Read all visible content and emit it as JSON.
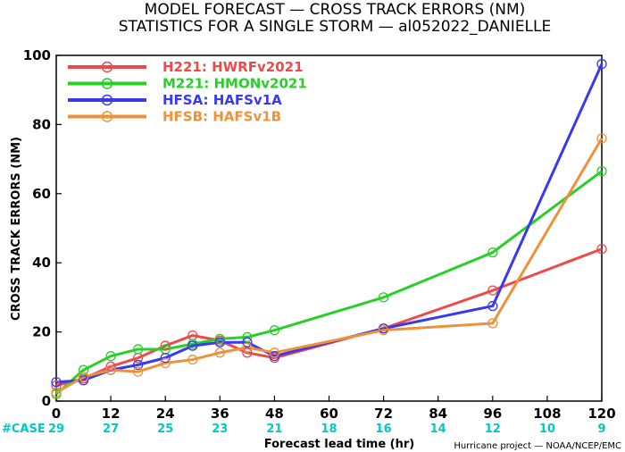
{
  "chart_data": {
    "type": "line",
    "title": "MODEL FORECAST — CROSS TRACK ERRORS (NM)",
    "subtitle": "STATISTICS FOR A SINGLE STORM — al052022_DANIELLE",
    "xlabel": "Forecast lead time (hr)",
    "ylabel": "CROSS TRACK ERRORS (NM)",
    "xlim": [
      0,
      120
    ],
    "ylim": [
      0,
      100
    ],
    "x_ticks": [
      0,
      12,
      24,
      36,
      48,
      60,
      72,
      84,
      96,
      108,
      120
    ],
    "y_ticks": [
      0,
      20,
      40,
      60,
      80,
      100
    ],
    "grid": false,
    "legend_position": "top-left",
    "case_row": {
      "label": "#CASE",
      "color": "#00c8c8",
      "counts": [
        "29",
        "27",
        "25",
        "23",
        "21",
        "18",
        "16",
        "14",
        "12",
        "10",
        "9"
      ]
    },
    "footer": "Hurricane project — NOAA/NCEP/EMC",
    "series": [
      {
        "name": "H221: HWRFv2021",
        "color": "#ef4a4a",
        "x": [
          0,
          6,
          12,
          18,
          24,
          30,
          36,
          42,
          48,
          72,
          96,
          120
        ],
        "y": [
          4.5,
          6.5,
          10,
          12.5,
          16,
          19,
          17.5,
          14,
          12.5,
          21,
          32,
          44
        ]
      },
      {
        "name": "M221: HMONv2021",
        "color": "#27d027",
        "x": [
          0,
          6,
          12,
          18,
          24,
          30,
          36,
          42,
          48,
          72,
          96,
          120
        ],
        "y": [
          2,
          9,
          13,
          15,
          15,
          16.5,
          18,
          18.5,
          20.5,
          30,
          43,
          66.5
        ]
      },
      {
        "name": "HFSA: HAFSv1A",
        "color": "#3939ef",
        "x": [
          0,
          6,
          12,
          18,
          24,
          30,
          36,
          42,
          48,
          72,
          96,
          120
        ],
        "y": [
          5.5,
          6,
          9,
          10.5,
          12.5,
          16,
          17,
          17,
          13,
          21,
          27.5,
          97.5
        ]
      },
      {
        "name": "HFSB: HAFSv1B",
        "color": "#f0913a",
        "x": [
          0,
          6,
          12,
          18,
          24,
          30,
          36,
          42,
          48,
          72,
          96,
          120
        ],
        "y": [
          2.5,
          7,
          9,
          8.5,
          11,
          12,
          14,
          15.5,
          14,
          20.5,
          22.5,
          76
        ]
      }
    ]
  }
}
